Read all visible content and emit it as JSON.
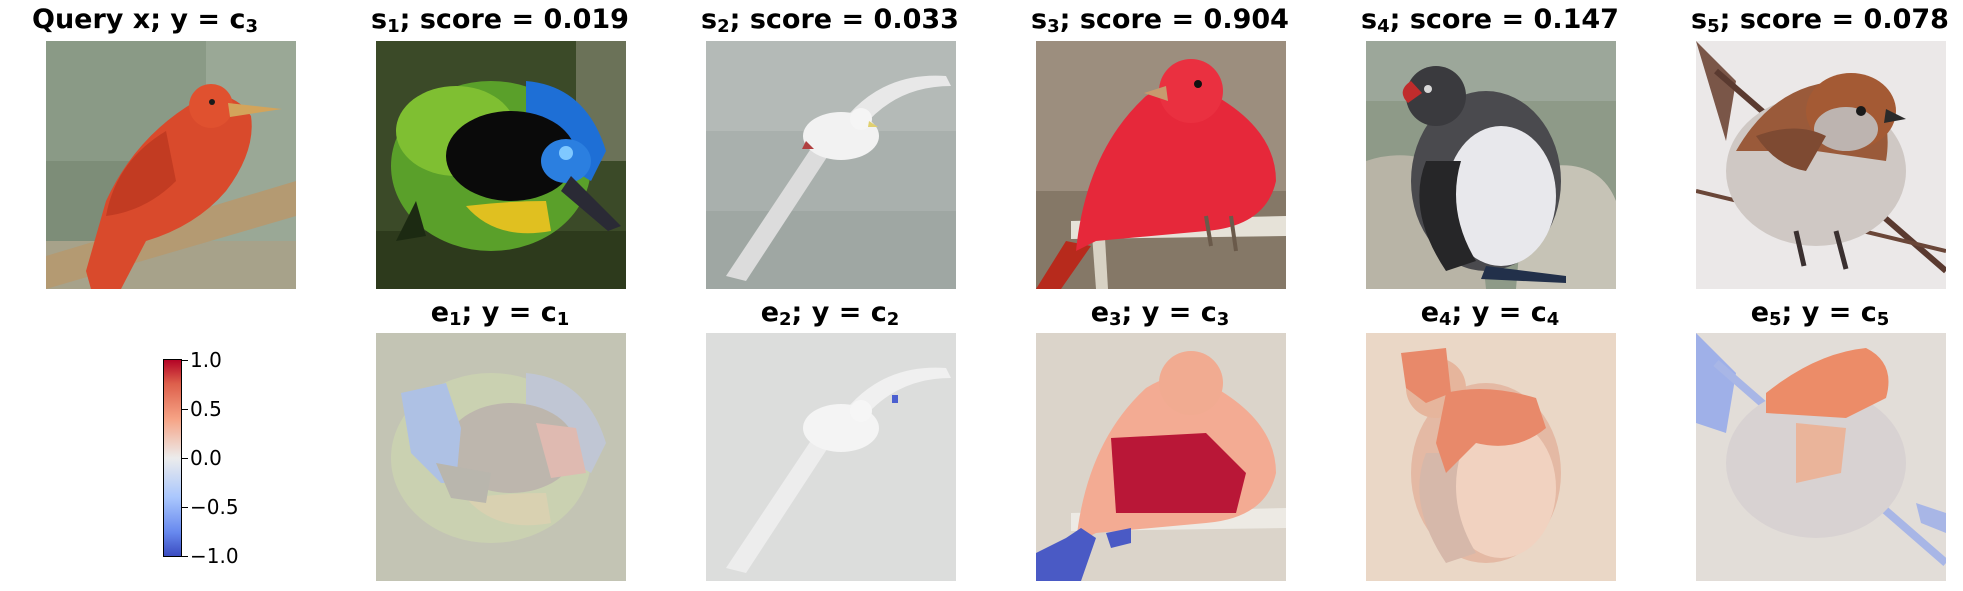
{
  "query": {
    "title_main": "Query x; y = c",
    "title_sub": "3"
  },
  "similar": [
    {
      "label": "s",
      "sub": "1",
      "score_text": "; score = 0.019",
      "image": "green-blue-jay-photo"
    },
    {
      "label": "s",
      "sub": "2",
      "score_text": "; score = 0.033",
      "image": "flying-tropicbird-photo"
    },
    {
      "label": "s",
      "sub": "3",
      "score_text": "; score = 0.904",
      "image": "red-tanager-photo"
    },
    {
      "label": "s",
      "sub": "4",
      "score_text": "; score = 0.147",
      "image": "auklet-photo"
    },
    {
      "label": "s",
      "sub": "5",
      "score_text": "; score = 0.078",
      "image": "sparrow-photo"
    }
  ],
  "explanations": [
    {
      "label": "e",
      "sub": "1",
      "class_text": "; y = c",
      "class_sub": "1"
    },
    {
      "label": "e",
      "sub": "2",
      "class_text": "; y = c",
      "class_sub": "2"
    },
    {
      "label": "e",
      "sub": "3",
      "class_text": "; y = c",
      "class_sub": "3"
    },
    {
      "label": "e",
      "sub": "4",
      "class_text": "; y = c",
      "class_sub": "4"
    },
    {
      "label": "e",
      "sub": "5",
      "class_text": "; y = c",
      "class_sub": "5"
    }
  ],
  "colorbar": {
    "colormap": "coolwarm",
    "range": [
      -1.0,
      1.0
    ],
    "ticks": [
      "1.0",
      "0.5",
      "0.0",
      "−0.5",
      "−1.0"
    ],
    "high_color": "#b40426",
    "low_color": "#3b4cc0"
  }
}
